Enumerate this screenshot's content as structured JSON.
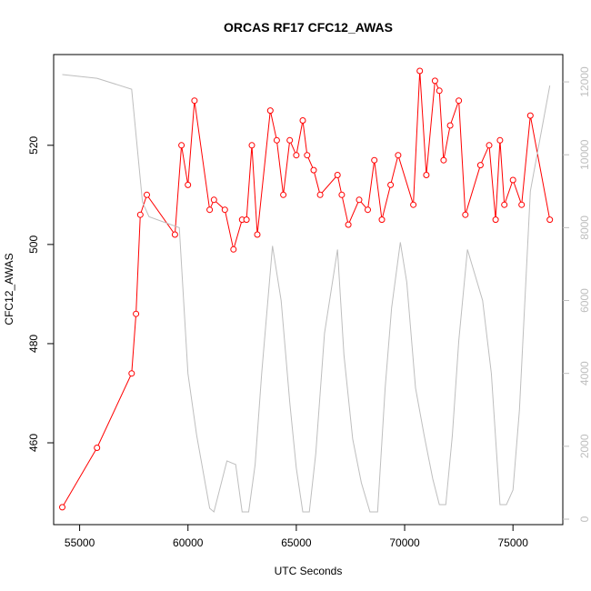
{
  "chart_data": {
    "type": "line",
    "title": "ORCAS RF17 CFC12_AWAS",
    "xlabel": "UTC Seconds",
    "ylabel": "CFC12_AWAS",
    "ylabel_right": "",
    "xlim": [
      53800,
      77300
    ],
    "ylim": [
      443.5,
      538.3
    ],
    "ylim_right": [
      -150,
      12750
    ],
    "x_ticks": [
      55000,
      60000,
      65000,
      70000,
      75000
    ],
    "y_ticks": [
      460,
      480,
      500,
      520
    ],
    "y_ticks_right": [
      0,
      2000,
      4000,
      6000,
      8000,
      10000,
      12000
    ],
    "grid": false,
    "series": [
      {
        "role": "primary",
        "color": "#ff0000",
        "marker": "open-circle",
        "x": [
          54200,
          55800,
          57400,
          57600,
          57800,
          58100,
          59400,
          59700,
          60000,
          60300,
          61000,
          61200,
          61700,
          62100,
          62500,
          62700,
          62950,
          63200,
          63800,
          64100,
          64400,
          64700,
          65000,
          65300,
          65500,
          65800,
          66100,
          66900,
          67100,
          67400,
          67900,
          68300,
          68600,
          68950,
          69350,
          69700,
          70400,
          70700,
          71000,
          71400,
          71600,
          71800,
          72100,
          72500,
          72800,
          73500,
          73900,
          74200,
          74400,
          74600,
          75000,
          75400,
          75800,
          76700
        ],
        "y": [
          447,
          459,
          474,
          486,
          506,
          510,
          502,
          520,
          512,
          529,
          507,
          509,
          507,
          499,
          505,
          505,
          520,
          502,
          527,
          521,
          510,
          521,
          518,
          525,
          518,
          515,
          510,
          514,
          510,
          504,
          509,
          507,
          517,
          505,
          512,
          518,
          508,
          535,
          514,
          533,
          531,
          517,
          524,
          529,
          506,
          516,
          520,
          505,
          521,
          508,
          513,
          508,
          526,
          505
        ]
      },
      {
        "role": "secondary",
        "color": "#bebebe",
        "x": [
          54200,
          55800,
          57400,
          57900,
          58200,
          59600,
          60000,
          60400,
          61000,
          61200,
          61800,
          62200,
          62500,
          62800,
          63100,
          63400,
          63900,
          64300,
          64700,
          65000,
          65300,
          65600,
          65900,
          66300,
          66900,
          67200,
          67600,
          68000,
          68400,
          68750,
          69100,
          69400,
          69800,
          70100,
          70500,
          70900,
          71300,
          71600,
          71900,
          72200,
          72500,
          72900,
          73600,
          74000,
          74400,
          74700,
          75000,
          75300,
          75800,
          76700
        ],
        "y": [
          12200,
          12100,
          11800,
          8700,
          8300,
          8000,
          4000,
          2300,
          300,
          200,
          1600,
          1500,
          200,
          200,
          1500,
          4000,
          7500,
          6000,
          3200,
          1400,
          200,
          200,
          1800,
          5100,
          7400,
          4500,
          2200,
          1000,
          200,
          200,
          3600,
          5800,
          7600,
          6500,
          3600,
          2300,
          1100,
          400,
          400,
          2300,
          4900,
          7400,
          6000,
          4000,
          400,
          400,
          800,
          3000,
          9000,
          11900
        ]
      }
    ]
  }
}
